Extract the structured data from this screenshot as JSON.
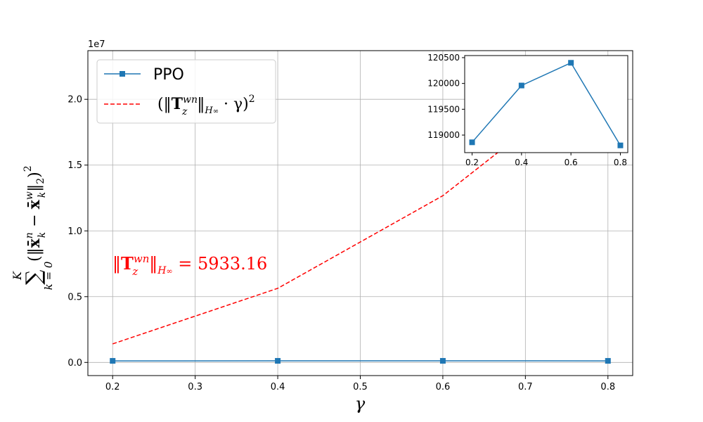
{
  "chart_data": [
    {
      "type": "line",
      "x": [
        0.2,
        0.4,
        0.6,
        0.8
      ],
      "series": [
        {
          "name": "PPO",
          "values": [
            118860,
            119960,
            120400,
            118800
          ],
          "color": "#1f77b4",
          "line_style": "solid",
          "marker": "square"
        },
        {
          "name": "(‖T_z^wn‖_H∞ · γ)^2",
          "values": [
            1408200,
            5632800,
            12673800,
            22531100
          ],
          "color": "#ff0000",
          "line_style": "dashed",
          "marker": "none"
        }
      ],
      "xlabel": "γ",
      "ylabel": "∑_{k=0}^{K} (‖x̄_k^n − x̄_k^w‖_2)^2",
      "xlim": [
        0.17,
        0.83
      ],
      "ylim": [
        -1000000,
        23700000
      ],
      "x_ticks": [
        "0.2",
        "0.3",
        "0.4",
        "0.5",
        "0.6",
        "0.7",
        "0.8"
      ],
      "y_ticks": [
        "0.0",
        "0.5",
        "1.0",
        "1.5",
        "2.0"
      ],
      "y_offset_label": "1e7",
      "grid": true,
      "legend": "top-left",
      "annotation": {
        "text_parts": {
          "norm_open": "‖",
          "T": "T",
          "sup": "wn",
          "sub": "z",
          "norm_close": "‖",
          "hsub": "H",
          "inf": "∞",
          "eq": " = 5933.16"
        },
        "color": "#ff0000"
      }
    },
    {
      "type": "line",
      "inset": true,
      "x": [
        0.2,
        0.4,
        0.6,
        0.8
      ],
      "series": [
        {
          "name": "PPO",
          "values": [
            118860,
            119960,
            120400,
            118800
          ],
          "color": "#1f77b4",
          "marker": "square"
        }
      ],
      "xlim": [
        0.17,
        0.83
      ],
      "ylim": [
        118660,
        120540
      ],
      "x_ticks": [
        "0.2",
        "0.4",
        "0.6",
        "0.8"
      ],
      "y_ticks": [
        "119000",
        "119500",
        "120000",
        "120500"
      ],
      "grid": false
    }
  ],
  "legend": {
    "ppo_label": "PPO",
    "bound_label_parts": {
      "open": "(‖",
      "T": "T",
      "sup": "wn",
      "sub": "z",
      "close": "‖",
      "hsub": "H",
      "inf": "∞",
      "mid": " · γ)",
      "pow": "2"
    }
  },
  "axis_text": {
    "xlabel": "γ",
    "offset": "1e7",
    "ylabel_parts": {
      "sum": "∑",
      "sum_top": "K",
      "sum_bottom": "k = 0",
      "body_open": "(‖",
      "x1": "x̄",
      "x1_sub": "k",
      "x1_sup": "n",
      "minus": " − ",
      "x2": "x̄",
      "x2_sub": "k",
      "x2_sup": "w",
      "body_close": "‖",
      "norm_sub": "2",
      "body_end": ")",
      "pow": "2"
    }
  }
}
